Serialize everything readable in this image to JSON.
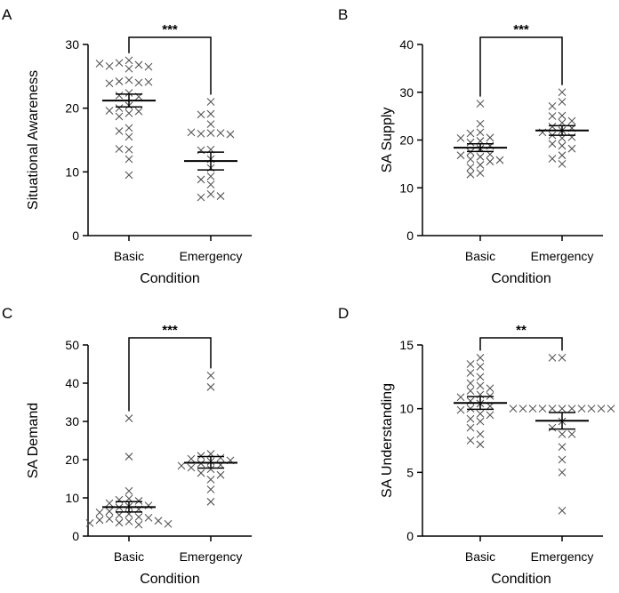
{
  "chart_data": [
    {
      "panel": "A",
      "type": "scatter",
      "xlabel": "Condition",
      "ylabel": "Situational Awareness",
      "categories": [
        "Basic",
        "Emergency"
      ],
      "ylim": [
        0,
        30
      ],
      "yticks": [
        0,
        10,
        20,
        30
      ],
      "significance": "***",
      "series": [
        {
          "name": "Basic",
          "mean": 21.2,
          "sem_low": 20.2,
          "sem_high": 22.2,
          "values": [
            27.5,
            27.1,
            26.8,
            26.6,
            26.5,
            27.0,
            26.2,
            24.4,
            24.2,
            24.0,
            23.9,
            24.1,
            22.4,
            22.0,
            21.8,
            20.4,
            20.0,
            19.5,
            19.2,
            19.6,
            18.7,
            16.9,
            16.4,
            15.5,
            13.5,
            13.6,
            12.0,
            9.5
          ]
        },
        {
          "name": "Emergency",
          "mean": 11.7,
          "sem_low": 10.3,
          "sem_high": 13.1,
          "values": [
            21.0,
            19.1,
            19.0,
            17.5,
            16.1,
            16.0,
            16.1,
            16.2,
            15.9,
            13.5,
            13.4,
            12.0,
            10.6,
            9.3,
            8.8,
            8.0,
            6.5,
            6.0,
            6.2
          ]
        }
      ]
    },
    {
      "panel": "B",
      "type": "scatter",
      "xlabel": "Condition",
      "ylabel": "SA Supply",
      "categories": [
        "Basic",
        "Emergency"
      ],
      "ylim": [
        0,
        40
      ],
      "yticks": [
        0,
        10,
        20,
        30,
        40
      ],
      "significance": "***",
      "series": [
        {
          "name": "Basic",
          "mean": 18.4,
          "sem_low": 17.6,
          "sem_high": 19.2,
          "values": [
            27.6,
            23.4,
            21.6,
            21.4,
            20.5,
            20.4,
            19.8,
            19.5,
            18.8,
            18.2,
            17.5,
            17.0,
            16.8,
            16.5,
            16.0,
            15.8,
            15.5,
            14.8,
            14.3,
            13.1,
            12.8
          ]
        },
        {
          "name": "Emergency",
          "mean": 22.0,
          "sem_low": 21.0,
          "sem_high": 23.0,
          "values": [
            30.0,
            28.0,
            27.1,
            25.1,
            25.0,
            24.0,
            23.6,
            22.8,
            22.5,
            22.0,
            21.6,
            21.0,
            20.6,
            20.4,
            19.2,
            18.8,
            18.2,
            16.8,
            16.1,
            15.0
          ]
        }
      ]
    },
    {
      "panel": "C",
      "type": "scatter",
      "xlabel": "Condition",
      "ylabel": "SA Demand",
      "categories": [
        "Basic",
        "Emergency"
      ],
      "ylim": [
        0,
        50
      ],
      "yticks": [
        0,
        10,
        20,
        30,
        40,
        50
      ],
      "significance": "***",
      "series": [
        {
          "name": "Basic",
          "mean": 7.6,
          "sem_low": 6.3,
          "sem_high": 9.0,
          "values": [
            30.8,
            20.8,
            11.8,
            9.8,
            9.5,
            9.2,
            8.6,
            8.0,
            7.8,
            7.5,
            7.0,
            6.5,
            6.2,
            5.8,
            5.5,
            5.0,
            4.8,
            4.5,
            4.2,
            4.0,
            3.8,
            3.5,
            3.4,
            3.2,
            3.0
          ]
        },
        {
          "name": "Emergency",
          "mean": 19.2,
          "sem_low": 17.8,
          "sem_high": 20.8,
          "values": [
            42.0,
            39.0,
            21.5,
            21.0,
            20.5,
            20.2,
            19.8,
            19.5,
            19.0,
            18.6,
            18.4,
            17.9,
            17.5,
            16.5,
            16.0,
            14.8,
            12.2,
            9.0
          ]
        }
      ]
    },
    {
      "panel": "D",
      "type": "scatter",
      "xlabel": "Condition",
      "ylabel": "SA Understanding",
      "categories": [
        "Basic",
        "Emergency"
      ],
      "ylim": [
        0,
        15
      ],
      "yticks": [
        0,
        5,
        10,
        15
      ],
      "significance": "**",
      "series": [
        {
          "name": "Basic",
          "mean": 10.45,
          "sem_low": 9.95,
          "sem_high": 10.95,
          "values": [
            14.0,
            13.5,
            13.3,
            12.8,
            12.5,
            12.0,
            11.8,
            11.6,
            11.4,
            11.1,
            11.0,
            10.9,
            10.6,
            10.4,
            10.2,
            10.0,
            9.9,
            9.6,
            9.5,
            9.2,
            9.0,
            8.5,
            8.0,
            7.5,
            7.2
          ]
        },
        {
          "name": "Emergency",
          "mean": 9.05,
          "sem_low": 8.4,
          "sem_high": 9.7,
          "values": [
            14.0,
            14.0,
            10.0,
            10.0,
            10.0,
            10.0,
            10.0,
            10.0,
            10.0,
            10.0,
            10.0,
            10.0,
            10.0,
            9.0,
            8.5,
            8.0,
            8.0,
            7.0,
            6.0,
            5.0,
            2.0
          ]
        }
      ]
    }
  ]
}
